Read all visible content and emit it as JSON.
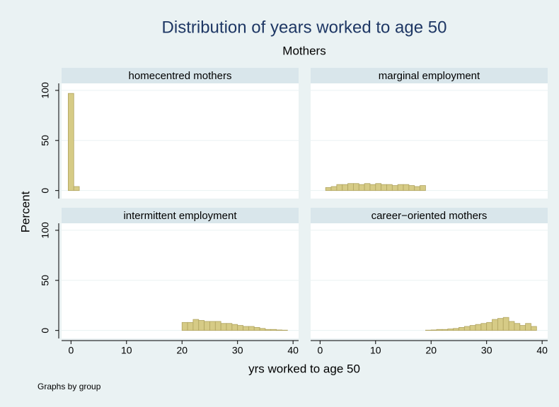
{
  "title": "Distribution of years worked to age 50",
  "subtitle": "Mothers",
  "x_label": "yrs worked to age 50",
  "y_label": "Percent",
  "note": "Graphs by group",
  "chart_data": [
    {
      "type": "histogram",
      "title": "homecentred mothers",
      "color": "#d6cb86",
      "bins": [
        -0.5,
        0.5,
        1.5
      ],
      "values": [
        97,
        4
      ],
      "xlim": [
        -1.7,
        41
      ],
      "ylim": [
        -8,
        107
      ],
      "yticks": [
        0,
        50,
        100
      ],
      "grid": true
    },
    {
      "type": "histogram",
      "title": "marginal employment",
      "color": "#d6cb86",
      "bins": [
        1,
        2,
        3,
        4,
        5,
        6,
        7,
        8,
        9,
        10,
        11,
        12,
        13,
        14,
        15,
        16,
        17,
        18,
        19
      ],
      "values": [
        3,
        4,
        6,
        6,
        7,
        7,
        6,
        7,
        6,
        7,
        6,
        6,
        5,
        6,
        6,
        5,
        4,
        5
      ],
      "xlim": [
        -1.7,
        41
      ],
      "ylim": [
        -8,
        107
      ],
      "yticks": [
        0,
        50,
        100
      ],
      "grid": true
    },
    {
      "type": "histogram",
      "title": "intermittent employment",
      "color": "#d6cb86",
      "bins": [
        20,
        21,
        22,
        23,
        24,
        25,
        26,
        27,
        28,
        29,
        30,
        31,
        32,
        33,
        34,
        35,
        36,
        37,
        38,
        39
      ],
      "values": [
        8,
        8,
        11,
        10,
        9,
        9,
        9,
        7,
        7,
        6,
        5,
        4,
        4,
        3,
        2,
        1,
        1,
        0.5,
        0.3
      ],
      "xlim": [
        -1.7,
        41
      ],
      "ylim": [
        -8,
        107
      ],
      "yticks": [
        0,
        50,
        100
      ],
      "xticks": [
        0,
        10,
        20,
        30,
        40
      ],
      "grid": true
    },
    {
      "type": "histogram",
      "title": "career−oriented mothers",
      "color": "#d6cb86",
      "bins": [
        19,
        20,
        21,
        22,
        23,
        24,
        25,
        26,
        27,
        28,
        29,
        30,
        31,
        32,
        33,
        34,
        35,
        36,
        37,
        38,
        39
      ],
      "values": [
        0.3,
        0.5,
        1,
        1,
        1.5,
        2,
        3,
        4,
        5,
        6,
        7,
        8,
        11,
        12,
        13,
        9,
        7,
        5,
        7,
        4
      ],
      "xlim": [
        -1.7,
        41
      ],
      "ylim": [
        -8,
        107
      ],
      "yticks": [
        0,
        50,
        100
      ],
      "xticks": [
        0,
        10,
        20,
        30,
        40
      ],
      "grid": true
    }
  ]
}
